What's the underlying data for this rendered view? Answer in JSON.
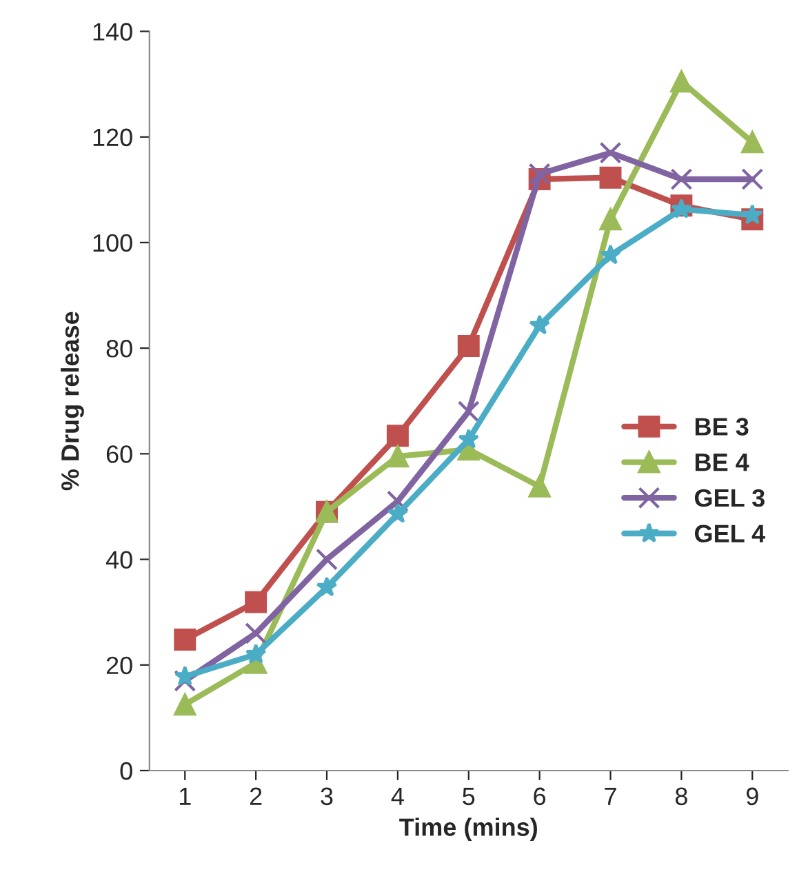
{
  "chart_data": {
    "type": "line",
    "xlabel": "Time (mins)",
    "ylabel": "% Drug release",
    "categories": [
      "1",
      "2",
      "3",
      "4",
      "5",
      "6",
      "7",
      "8",
      "9"
    ],
    "ylim": [
      0,
      140
    ],
    "yticks": [
      0,
      20,
      40,
      60,
      80,
      100,
      120,
      140
    ],
    "grid": false,
    "legend": "right",
    "series": [
      {
        "name": "BE 3",
        "color": "#c0504d",
        "marker": "square",
        "values": [
          24.8,
          31.9,
          49,
          63.4,
          80.4,
          112,
          112.3,
          107,
          104.4
        ]
      },
      {
        "name": "BE 4",
        "color": "#9bbb59",
        "marker": "triangle",
        "values": [
          12.5,
          20.4,
          49,
          59.5,
          60.8,
          53.8,
          104.4,
          130.5,
          119
        ]
      },
      {
        "name": "GEL 3",
        "color": "#8064a2",
        "marker": "cross",
        "values": [
          17,
          26,
          40,
          51,
          68,
          113,
          117,
          112,
          112
        ]
      },
      {
        "name": "GEL 4",
        "color": "#4bacc6",
        "marker": "star",
        "values": [
          17.8,
          22,
          34.7,
          48.6,
          62.7,
          84.3,
          97.6,
          106.3,
          105.2
        ]
      }
    ]
  }
}
